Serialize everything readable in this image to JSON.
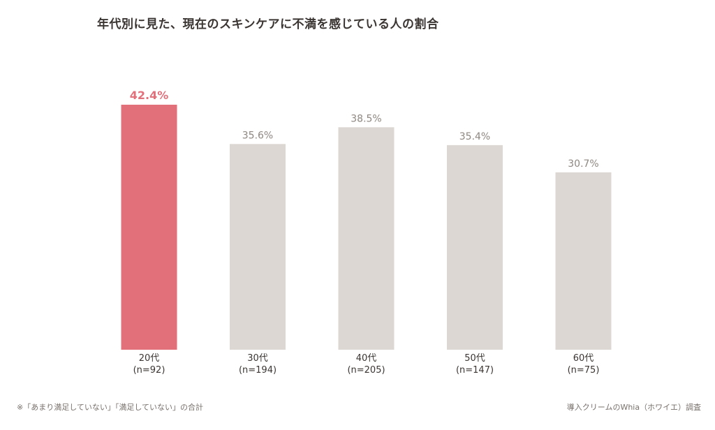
{
  "chart_data": {
    "type": "bar",
    "title": "年代別に見た、現在のスキンケアに不満を感じている人の割合",
    "categories": [
      "20代",
      "30代",
      "40代",
      "50代",
      "60代"
    ],
    "sample_sizes": [
      "(n=92)",
      "(n=194)",
      "(n=205)",
      "(n=147)",
      "(n=75)"
    ],
    "values": [
      42.4,
      35.6,
      38.5,
      35.4,
      30.7
    ],
    "value_labels": [
      "42.4%",
      "35.6%",
      "38.5%",
      "35.4%",
      "30.7%"
    ],
    "ylim": [
      0,
      50
    ],
    "highlight_index": 0,
    "grid": false,
    "colors": {
      "highlight": "#e2707b",
      "bar": "#dcd7d2",
      "highlight_label": "#e2707b",
      "label": "#8e8781",
      "category": "#3a3532"
    }
  },
  "footnote": "※「あまり満足していない」「満足していない」の合計",
  "source": "導入クリームのWhia（ホワイエ）調査"
}
